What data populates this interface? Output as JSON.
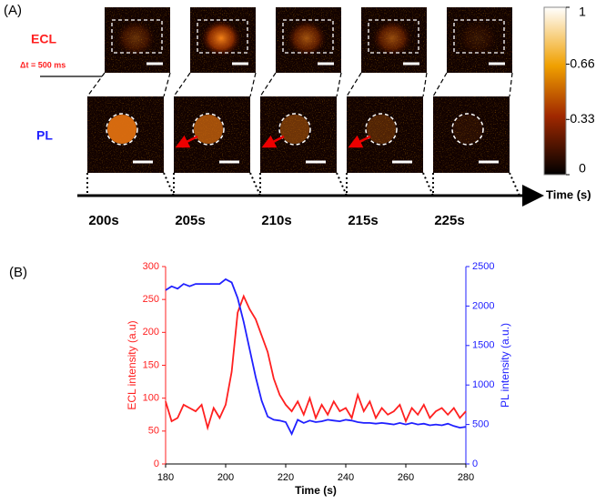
{
  "panel_a": {
    "panel_label": "(A)",
    "ecl_label": "ECL",
    "pl_label": "PL",
    "dt_label": "Δt = 500 ms",
    "times": [
      "200s",
      "205s",
      "210s",
      "215s",
      "225s"
    ],
    "time_axis_label": "Time (s)",
    "colorbar": {
      "lim": [
        0,
        1
      ],
      "ticks": [
        1,
        0.66,
        0.33,
        0
      ]
    }
  },
  "chart_data": {
    "type": "line",
    "panel_label": "(B)",
    "xlabel": "Time (s)",
    "ylabel": "ECL intensity (a.u)",
    "y2label": "PL intensity (a.u.)",
    "x": [
      180,
      182,
      184,
      186,
      188,
      190,
      192,
      194,
      196,
      198,
      200,
      202,
      204,
      206,
      208,
      210,
      212,
      214,
      216,
      218,
      220,
      222,
      224,
      226,
      228,
      230,
      232,
      234,
      236,
      238,
      240,
      242,
      244,
      246,
      248,
      250,
      252,
      254,
      256,
      258,
      260,
      262,
      264,
      266,
      268,
      270,
      272,
      274,
      276,
      278,
      280
    ],
    "xlim": [
      180,
      280
    ],
    "xticks": [
      180,
      200,
      220,
      240,
      260,
      280
    ],
    "ylim": [
      0,
      300
    ],
    "yticks": [
      0,
      50,
      100,
      150,
      200,
      250,
      300
    ],
    "y2lim": [
      0,
      2500
    ],
    "y2ticks": [
      0,
      500,
      1000,
      1500,
      2000,
      2500
    ],
    "series": [
      {
        "name": "ECL",
        "color": "#ff2020",
        "values": [
          95,
          65,
          70,
          90,
          85,
          80,
          90,
          55,
          85,
          70,
          90,
          140,
          230,
          255,
          235,
          220,
          195,
          170,
          130,
          105,
          90,
          80,
          95,
          75,
          100,
          70,
          90,
          75,
          95,
          80,
          85,
          70,
          105,
          80,
          95,
          70,
          85,
          75,
          80,
          90,
          65,
          85,
          75,
          90,
          70,
          80,
          85,
          75,
          85,
          70,
          80
        ]
      },
      {
        "name": "PL",
        "color": "#2020ff",
        "axis": "y2",
        "values": [
          2200,
          2250,
          2220,
          2280,
          2250,
          2280,
          2280,
          2280,
          2280,
          2280,
          2340,
          2300,
          2100,
          1800,
          1450,
          1100,
          800,
          600,
          560,
          550,
          530,
          380,
          560,
          520,
          550,
          530,
          540,
          560,
          550,
          540,
          560,
          550,
          530,
          520,
          520,
          510,
          520,
          510,
          500,
          520,
          500,
          520,
          500,
          510,
          490,
          500,
          490,
          510,
          480,
          460,
          470
        ]
      }
    ]
  }
}
